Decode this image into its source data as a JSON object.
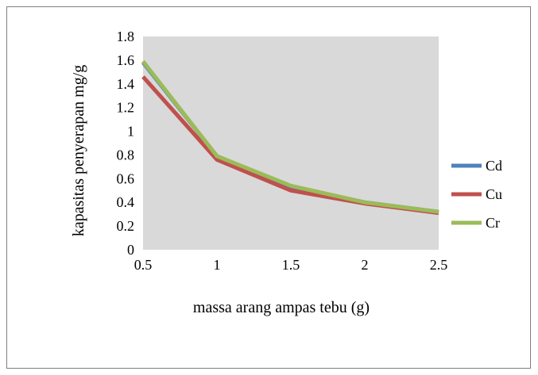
{
  "chart_data": {
    "type": "line",
    "title": "",
    "xlabel": "massa arang ampas tebu (g)",
    "ylabel": "kapasitas penyerapan mg/g",
    "x": [
      0.5,
      1,
      1.5,
      2,
      2.5
    ],
    "x_tick_labels": [
      "0.5",
      "1",
      "1.5",
      "2",
      "2.5"
    ],
    "ylim": [
      0,
      1.8
    ],
    "y_ticks": [
      0,
      0.2,
      0.4,
      0.6,
      0.8,
      1,
      1.2,
      1.4,
      1.6,
      1.8
    ],
    "y_tick_labels": [
      "0",
      "0.2",
      "0.4",
      "0.6",
      "0.8",
      "1",
      "1.2",
      "1.4",
      "1.6",
      "1.8"
    ],
    "grid": false,
    "plot_background": "#d9d9d9",
    "legend_position": "right",
    "series": [
      {
        "name": "Cd",
        "color": "#4f81bd",
        "values": [
          1.58,
          0.79,
          0.53,
          0.4,
          0.32
        ]
      },
      {
        "name": "Cu",
        "color": "#c0504d",
        "values": [
          1.46,
          0.76,
          0.5,
          0.39,
          0.31
        ]
      },
      {
        "name": "Cr",
        "color": "#9bbb59",
        "values": [
          1.59,
          0.79,
          0.54,
          0.4,
          0.32
        ]
      }
    ]
  }
}
